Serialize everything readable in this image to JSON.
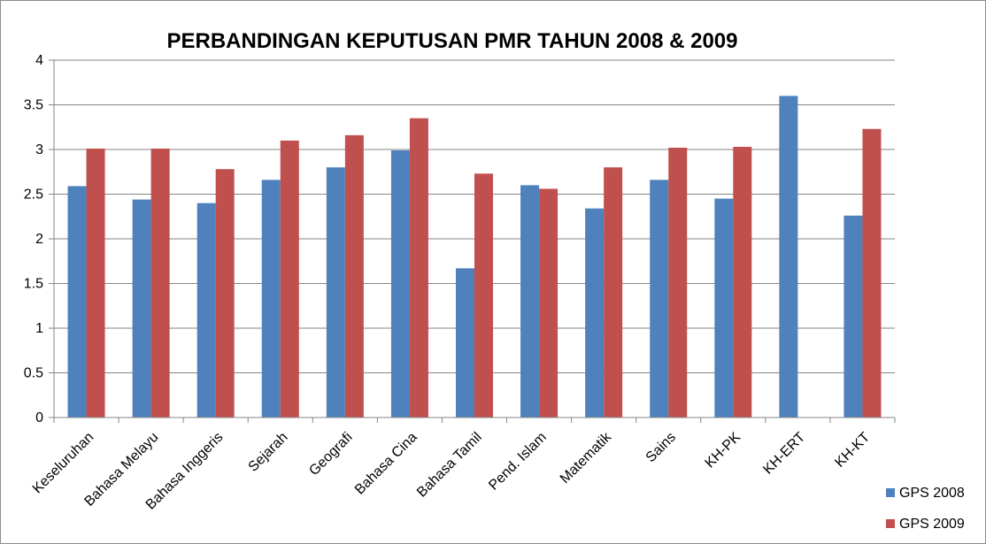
{
  "chart_data": {
    "type": "bar",
    "title": "PERBANDINGAN KEPUTUSAN PMR TAHUN 2008 & 2009",
    "xlabel": "",
    "ylabel": "",
    "ylim": [
      0,
      4
    ],
    "yticks": [
      "0",
      "0.5",
      "1",
      "1.5",
      "2",
      "2.5",
      "3",
      "3.5",
      "4"
    ],
    "grid": true,
    "legend_position": "bottom-right",
    "categories": [
      "Keseluruhan",
      "Bahasa Melayu",
      "Bahasa Inggeris",
      "Sejarah",
      "Geografi",
      "Bahasa Cina",
      "Bahasa Tamil",
      "Pend. Islam",
      "Matematik",
      "Sains",
      "KH-PK",
      "KH-ERT",
      "KH-KT"
    ],
    "series": [
      {
        "name": "GPS 2008",
        "color": "#4f81bd",
        "values": [
          2.59,
          2.44,
          2.4,
          2.66,
          2.8,
          2.99,
          1.67,
          2.6,
          2.34,
          2.66,
          2.45,
          3.6,
          2.26
        ]
      },
      {
        "name": "GPS 2009",
        "color": "#c0504d",
        "values": [
          3.01,
          3.01,
          2.78,
          3.1,
          3.16,
          3.35,
          2.73,
          2.56,
          2.8,
          3.02,
          3.03,
          null,
          3.23
        ]
      }
    ]
  }
}
